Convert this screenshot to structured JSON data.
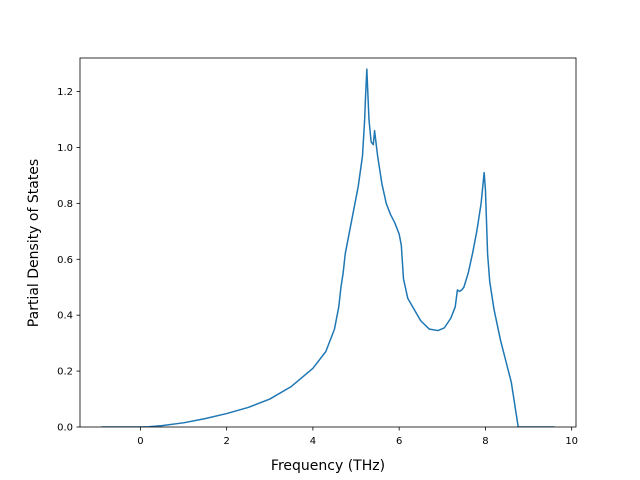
{
  "chart_data": {
    "type": "line",
    "title": "",
    "xlabel": "Frequency (THz)",
    "ylabel": "Partial Density of States",
    "xlim": [
      -1.4,
      10.1
    ],
    "ylim": [
      0.0,
      1.32
    ],
    "xticks": [
      0,
      2,
      4,
      6,
      8,
      10
    ],
    "yticks": [
      0.0,
      0.2,
      0.4,
      0.6,
      0.8,
      1.0,
      1.2
    ],
    "xtick_labels": [
      "0",
      "2",
      "4",
      "6",
      "8",
      "10"
    ],
    "ytick_labels": [
      "0.0",
      "0.2",
      "0.4",
      "0.6",
      "0.8",
      "1.0",
      "1.2"
    ],
    "grid": false,
    "legend": "none",
    "series": [
      {
        "color": "#1f77b4",
        "x": [
          -0.9,
          -0.5,
          0.0,
          0.2,
          0.5,
          1.0,
          1.5,
          2.0,
          2.5,
          3.0,
          3.5,
          4.0,
          4.3,
          4.5,
          4.6,
          4.65,
          4.7,
          4.75,
          4.85,
          4.95,
          5.05,
          5.15,
          5.2,
          5.22,
          5.25,
          5.3,
          5.35,
          5.4,
          5.43,
          5.5,
          5.6,
          5.7,
          5.8,
          5.9,
          6.0,
          6.05,
          6.1,
          6.2,
          6.35,
          6.5,
          6.7,
          6.9,
          7.05,
          7.2,
          7.3,
          7.35,
          7.4,
          7.45,
          7.5,
          7.6,
          7.7,
          7.8,
          7.9,
          7.97,
          8.0,
          8.05,
          8.1,
          8.2,
          8.35,
          8.5,
          8.6,
          8.7,
          8.76,
          8.8,
          9.0,
          9.6
        ],
        "y": [
          0.0,
          0.0,
          0.0,
          0.001,
          0.005,
          0.015,
          0.03,
          0.048,
          0.07,
          0.1,
          0.145,
          0.21,
          0.27,
          0.35,
          0.43,
          0.5,
          0.55,
          0.62,
          0.7,
          0.78,
          0.86,
          0.97,
          1.1,
          1.18,
          1.28,
          1.1,
          1.02,
          1.01,
          1.06,
          0.97,
          0.87,
          0.8,
          0.76,
          0.73,
          0.69,
          0.65,
          0.53,
          0.46,
          0.42,
          0.38,
          0.35,
          0.345,
          0.355,
          0.39,
          0.43,
          0.49,
          0.485,
          0.49,
          0.5,
          0.55,
          0.62,
          0.7,
          0.8,
          0.91,
          0.85,
          0.62,
          0.52,
          0.42,
          0.31,
          0.22,
          0.16,
          0.06,
          0.0,
          0.0,
          0.0,
          0.0
        ]
      }
    ]
  }
}
